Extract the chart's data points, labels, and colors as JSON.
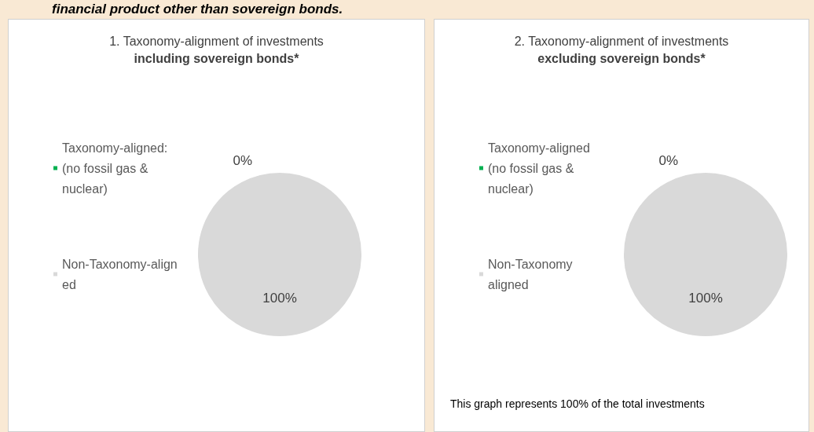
{
  "chart_data": [
    {
      "type": "pie",
      "title": "1. Taxonomy-alignment of investments",
      "subtitle": "including sovereign bonds*",
      "annotations": [
        "financial product other than sovereign bonds."
      ],
      "categories": [
        "Taxonomy-aligned: (no fossil gas & nuclear)",
        "Non-Taxonomy-aligned"
      ],
      "values": [
        0,
        100
      ],
      "colors": [
        "#00b050",
        "#d9d9d9"
      ],
      "value_labels": [
        "0%",
        "100%"
      ],
      "legend": "left"
    },
    {
      "type": "pie",
      "title": "2. Taxonomy-alignment of investments",
      "subtitle": "excluding sovereign bonds*",
      "annotations": [
        "This graph represents 100% of the total investments"
      ],
      "categories": [
        "Taxonomy-aligned (no fossil gas & nuclear)",
        "Non-Taxonomy aligned"
      ],
      "values": [
        0,
        100
      ],
      "colors": [
        "#00b050",
        "#d9d9d9"
      ],
      "value_labels": [
        "0%",
        "100%"
      ],
      "legend": "left"
    }
  ]
}
